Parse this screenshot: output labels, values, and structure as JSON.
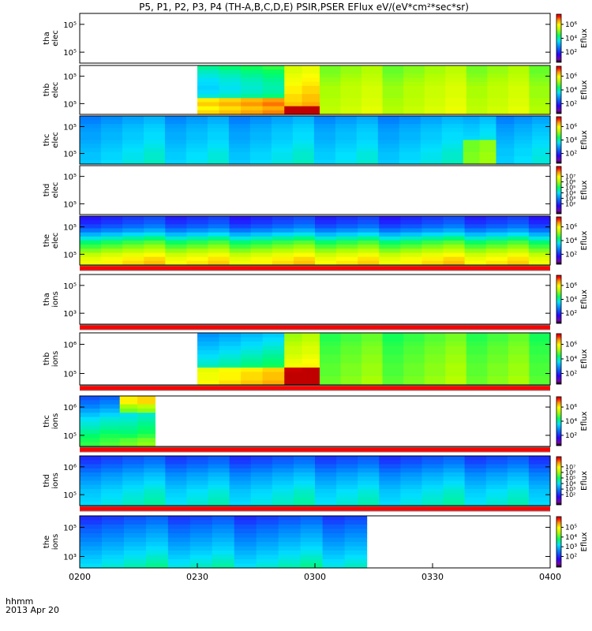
{
  "chart_data": {
    "type": "heatmap",
    "title": "P5, P1, P2, P3, P4 (TH-A,B,C,D,E) PSIR,PSER EFlux eV/(eV*cm²*sec*sr)",
    "x_axis": {
      "ticks": [
        "0200",
        "0230",
        "0300",
        "0330",
        "0400"
      ],
      "range": [
        "02:00",
        "04:00"
      ],
      "label_line1": "hhmm",
      "label_line2": "2013 Apr 20"
    },
    "colorbar_label": "Eflux",
    "panels": [
      {
        "ylabel1": "tha",
        "ylabel2": "elec",
        "yticks": [
          "10⁵",
          "10⁵"
        ],
        "cbar_ticks": [
          "10⁶",
          "10⁴",
          "10²"
        ],
        "bands": [],
        "redline": false
      },
      {
        "ylabel1": "thb",
        "ylabel2": "elec",
        "yticks": [
          "10⁵",
          "10⁵"
        ],
        "cbar_ticks": [
          "10⁶",
          "10⁴",
          "10²"
        ],
        "redline": false,
        "bands": [
          {
            "start": 0.25,
            "end": 0.435,
            "rows": [
              0.55,
              0.52,
              0.5,
              0.48,
              0.47,
              0.46,
              0.47,
              0.5,
              0.83,
              0.86,
              0.82,
              0.85
            ]
          },
          {
            "start": 0.435,
            "end": 0.51,
            "rows": [
              0.72,
              0.72,
              0.74,
              0.75,
              0.76,
              0.78,
              0.78,
              0.8,
              0.8,
              0.82,
              1.0,
              1.0
            ]
          },
          {
            "start": 0.51,
            "end": 1.0,
            "rows": [
              0.66,
              0.66,
              0.67,
              0.68,
              0.69,
              0.7,
              0.7,
              0.7,
              0.71,
              0.71,
              0.72,
              0.72
            ]
          }
        ]
      },
      {
        "ylabel1": "thc",
        "ylabel2": "elec",
        "yticks": [
          "10⁵",
          "10⁵"
        ],
        "cbar_ticks": [
          "10⁶",
          "10⁴",
          "10²"
        ],
        "redline": false,
        "bands": [
          {
            "start": 0.0,
            "end": 0.815,
            "rows": [
              0.35,
              0.36,
              0.38,
              0.39,
              0.4,
              0.4,
              0.41,
              0.42,
              0.43,
              0.44,
              0.44,
              0.45
            ]
          },
          {
            "start": 0.815,
            "end": 0.885,
            "rows": [
              0.36,
              0.37,
              0.39,
              0.4,
              0.41,
              0.42,
              0.62,
              0.62,
              0.62,
              0.63,
              0.63,
              0.63
            ]
          },
          {
            "start": 0.885,
            "end": 1.0,
            "rows": [
              0.34,
              0.35,
              0.37,
              0.38,
              0.39,
              0.4,
              0.41,
              0.42,
              0.43,
              0.43,
              0.44,
              0.44
            ]
          }
        ]
      },
      {
        "ylabel1": "thd",
        "ylabel2": "elec",
        "yticks": [
          "10⁵",
          "10⁵"
        ],
        "cbar_ticks": [
          "10⁷",
          "10⁶",
          "10⁵",
          "10⁴",
          "10³",
          "10²"
        ],
        "bands": [],
        "redline": false
      },
      {
        "ylabel1": "the",
        "ylabel2": "elec",
        "yticks": [
          "10⁵",
          "10⁵"
        ],
        "cbar_ticks": [
          "10⁶",
          "10⁴",
          "10²"
        ],
        "redline": true,
        "bands": [
          {
            "start": 0.0,
            "end": 1.0,
            "rows": [
              0.22,
              0.24,
              0.28,
              0.34,
              0.42,
              0.5,
              0.58,
              0.63,
              0.68,
              0.74,
              0.78,
              0.8
            ]
          }
        ]
      },
      {
        "ylabel1": "tha",
        "ylabel2": "ions",
        "yticks": [
          "10⁵",
          "10³"
        ],
        "cbar_ticks": [
          "10⁶",
          "10⁴",
          "10²"
        ],
        "bands": [],
        "redline": true
      },
      {
        "ylabel1": "thb",
        "ylabel2": "ions",
        "yticks": [
          "10⁶",
          "10⁵"
        ],
        "cbar_ticks": [
          "10⁶",
          "10⁴",
          "10²"
        ],
        "redline": true,
        "bands": [
          {
            "start": 0.25,
            "end": 0.435,
            "rows": [
              0.38,
              0.4,
              0.42,
              0.44,
              0.46,
              0.48,
              0.5,
              0.52,
              0.78,
              0.8,
              0.8,
              0.82
            ]
          },
          {
            "start": 0.435,
            "end": 0.51,
            "rows": [
              0.65,
              0.66,
              0.68,
              0.7,
              0.7,
              0.72,
              0.74,
              0.75,
              0.98,
              1.0,
              1.0,
              1.0
            ]
          },
          {
            "start": 0.51,
            "end": 1.0,
            "rows": [
              0.6,
              0.6,
              0.61,
              0.62,
              0.62,
              0.63,
              0.63,
              0.64,
              0.64,
              0.64,
              0.65,
              0.65
            ]
          }
        ]
      },
      {
        "ylabel1": "thc",
        "ylabel2": "ions",
        "yticks": [
          "10⁶",
          "10⁵"
        ],
        "cbar_ticks": [
          "10⁶",
          "10⁴",
          "10²"
        ],
        "redline": true,
        "bands": [
          {
            "start": 0.0,
            "end": 0.085,
            "rows": [
              0.3,
              0.33,
              0.36,
              0.4,
              0.44,
              0.48,
              0.5,
              0.52,
              0.55,
              0.58,
              0.6,
              0.62
            ]
          },
          {
            "start": 0.085,
            "end": 0.16,
            "rows": [
              0.78,
              0.78,
              0.66,
              0.62,
              0.44,
              0.46,
              0.48,
              0.5,
              0.52,
              0.55,
              0.6,
              0.62
            ]
          }
        ]
      },
      {
        "ylabel1": "thd",
        "ylabel2": "ions",
        "yticks": [
          "10⁶",
          "10⁵"
        ],
        "cbar_ticks": [
          "10⁷",
          "10⁶",
          "10⁵",
          "10⁴",
          "10³",
          "10²"
        ],
        "redline": true,
        "bands": [
          {
            "start": 0.0,
            "end": 1.0,
            "rows": [
              0.25,
              0.27,
              0.3,
              0.33,
              0.36,
              0.38,
              0.4,
              0.42,
              0.44,
              0.45,
              0.46,
              0.47
            ]
          }
        ]
      },
      {
        "ylabel1": "the",
        "ylabel2": "ions",
        "yticks": [
          "10⁵",
          "10³"
        ],
        "cbar_ticks": [
          "10⁵",
          "10⁴",
          "10³",
          "10²"
        ],
        "redline": false,
        "bands": [
          {
            "start": 0.0,
            "end": 0.61,
            "rows": [
              0.25,
              0.27,
              0.3,
              0.32,
              0.34,
              0.36,
              0.38,
              0.4,
              0.42,
              0.44,
              0.46,
              0.48
            ]
          }
        ]
      }
    ]
  }
}
